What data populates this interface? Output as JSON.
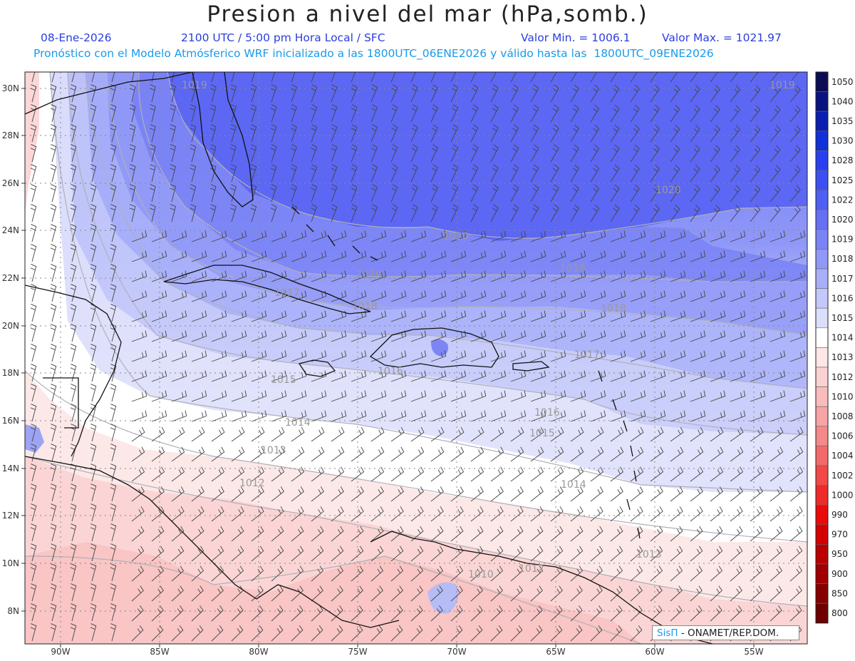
{
  "header": {
    "title": "Presion a nivel del mar (hPa,somb.)",
    "date": "08-Ene-2026",
    "time": "2100 UTC / 5:00 pm Hora Local / SFC",
    "min": "Valor Min. = 1006.1",
    "max": "Valor Max. = 1021.97",
    "forecast": "Pronóstico con el Modelo Atmósferico WRF inicializado a las 1800UTC_06ENE2026 y válido hasta las  1800UTC_09ENE2026"
  },
  "axes": {
    "lat_labels": [
      "30N",
      "28N",
      "26N",
      "24N",
      "22N",
      "20N",
      "18N",
      "16N",
      "14N",
      "12N",
      "10N",
      "8N"
    ],
    "lon_labels": [
      "90W",
      "85W",
      "80W",
      "75W",
      "70W",
      "65W",
      "60W",
      "55W"
    ]
  },
  "contour_labels": [
    "1020",
    "1020",
    "1019",
    "1019",
    "1018",
    "1018",
    "1017",
    "1017",
    "1016",
    "1016",
    "1015",
    "1015",
    "1014",
    "1014",
    "1013",
    "1013",
    "1012",
    "1012",
    "1010",
    "1019",
    "1019"
  ],
  "colorbar": {
    "levels": [
      "1050",
      "1040",
      "1035",
      "1030",
      "1028",
      "1025",
      "1022",
      "1020",
      "1019",
      "1018",
      "1017",
      "1016",
      "1015",
      "1014",
      "1013",
      "1012",
      "1010",
      "1008",
      "1006",
      "1004",
      "1002",
      "1000",
      "990",
      "970",
      "950",
      "900",
      "850",
      "800"
    ],
    "colors": [
      "#0c0c55",
      "#0a1480",
      "#0a1fb0",
      "#1030d8",
      "#2a40f0",
      "#3d4ff2",
      "#4f5ef3",
      "#6570f5",
      "#7a84f6",
      "#9099f7",
      "#a8aff9",
      "#c3c8fa",
      "#dcdffc",
      "#ffffff",
      "#fde6e6",
      "#fbd2d2",
      "#f9bcbc",
      "#f7a4a4",
      "#f58888",
      "#f36a6a",
      "#f14848",
      "#ef2a2a",
      "#ea0a0a",
      "#d40000",
      "#bb0000",
      "#a00000",
      "#870000",
      "#6e0000"
    ]
  },
  "credit": {
    "logo": "SisΠ",
    "org": "- ONAMET/REP.DOM."
  }
}
